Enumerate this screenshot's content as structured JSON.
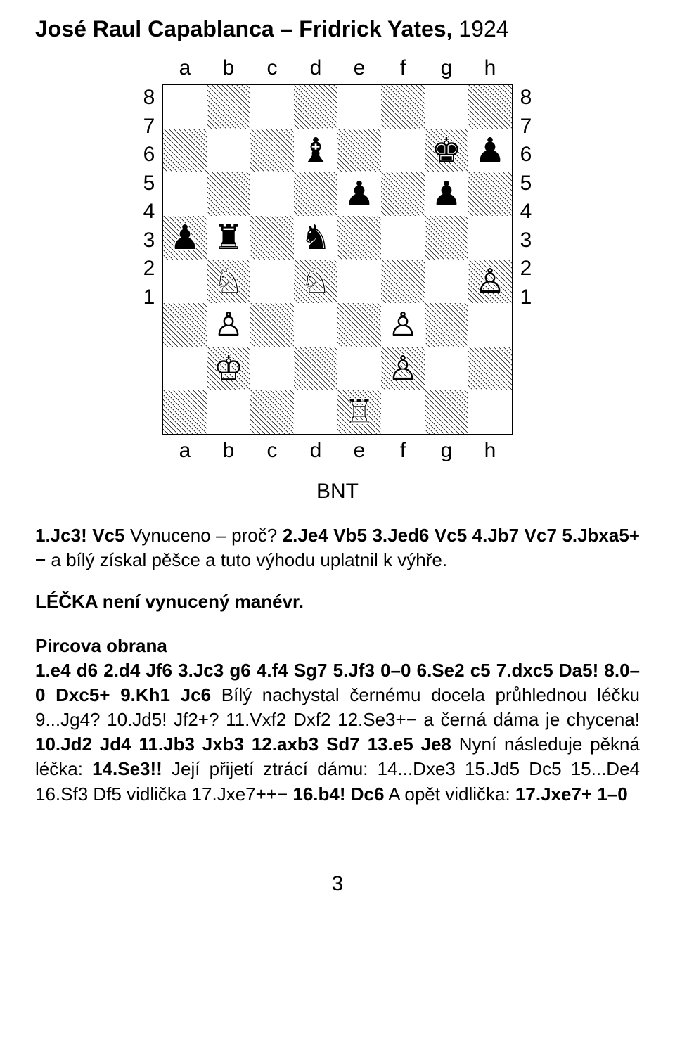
{
  "title": {
    "players": "José Raul Capablanca – Fridrick Yates,",
    "year": "1924"
  },
  "board": {
    "files": [
      "a",
      "b",
      "c",
      "d",
      "e",
      "f",
      "g",
      "h"
    ],
    "ranks": [
      "8",
      "7",
      "6",
      "5",
      "4",
      "3",
      "2",
      "1"
    ],
    "squares": [
      [
        "",
        "",
        "",
        "",
        "",
        "",
        "",
        ""
      ],
      [
        "",
        "",
        "",
        "♝",
        "",
        "",
        "♚",
        "♟"
      ],
      [
        "",
        "",
        "",
        "",
        "♟",
        "",
        "♟",
        ""
      ],
      [
        "♟",
        "♜",
        "",
        "♞",
        "",
        "",
        "",
        ""
      ],
      [
        "",
        "♘",
        "",
        "♘",
        "",
        "",
        "",
        "♙"
      ],
      [
        "",
        "♙",
        "",
        "",
        "",
        "♙",
        "",
        ""
      ],
      [
        "",
        "♔",
        "",
        "",
        "",
        "♙",
        "",
        ""
      ],
      [
        "",
        "",
        "",
        "",
        "♖",
        "",
        "",
        ""
      ]
    ]
  },
  "bnt": "BNT",
  "p1_moves": "1.Jc3! Vc5",
  "p1_t1": " Vynuceno – proč? ",
  "p1_m2": "2.Je4 Vb5 3.Jed6 Vc5 4.Jb7 Vc7 5.Jbxa5+−",
  "p1_t2": " a bílý získal pěšce a tuto výhodu uplatnil k výhře.",
  "p2": "LÉČKA není vynucený manévr.",
  "p3_h": "Pircova obrana",
  "p3_m1": "1.e4 d6 2.d4 Jf6 3.Jc3 g6 4.f4 Sg7 5.Jf3 0–0 6.Se2 c5 7.dxc5 Da5! 8.0–0 Dxc5+ 9.Kh1 Jc6",
  "p3_t1": " Bílý nachystal černému docela průhlednou léčku 9...Jg4? 10.Jd5! Jf2+? 11.Vxf2 Dxf2 12.Se3+− a černá dáma je chycena! ",
  "p3_m2": "10.Jd2 Jd4 11.Jb3 Jxb3 12.axb3 Sd7 13.e5 Je8",
  "p3_t2": " Nyní následuje pěkná léčka: ",
  "p3_m3": "14.Se3!!",
  "p3_t3": " Její přijetí ztrácí dámu: 14...Dxe3 15.Jd5 Dc5 15...De4 16.Sf3 Df5 vidlička 17.Jxe7++− ",
  "p3_m4": "16.b4! Dc6",
  "p3_t4": " A opět vidlička: ",
  "p3_m5": "17.Jxe7+ 1–0",
  "page": "3"
}
